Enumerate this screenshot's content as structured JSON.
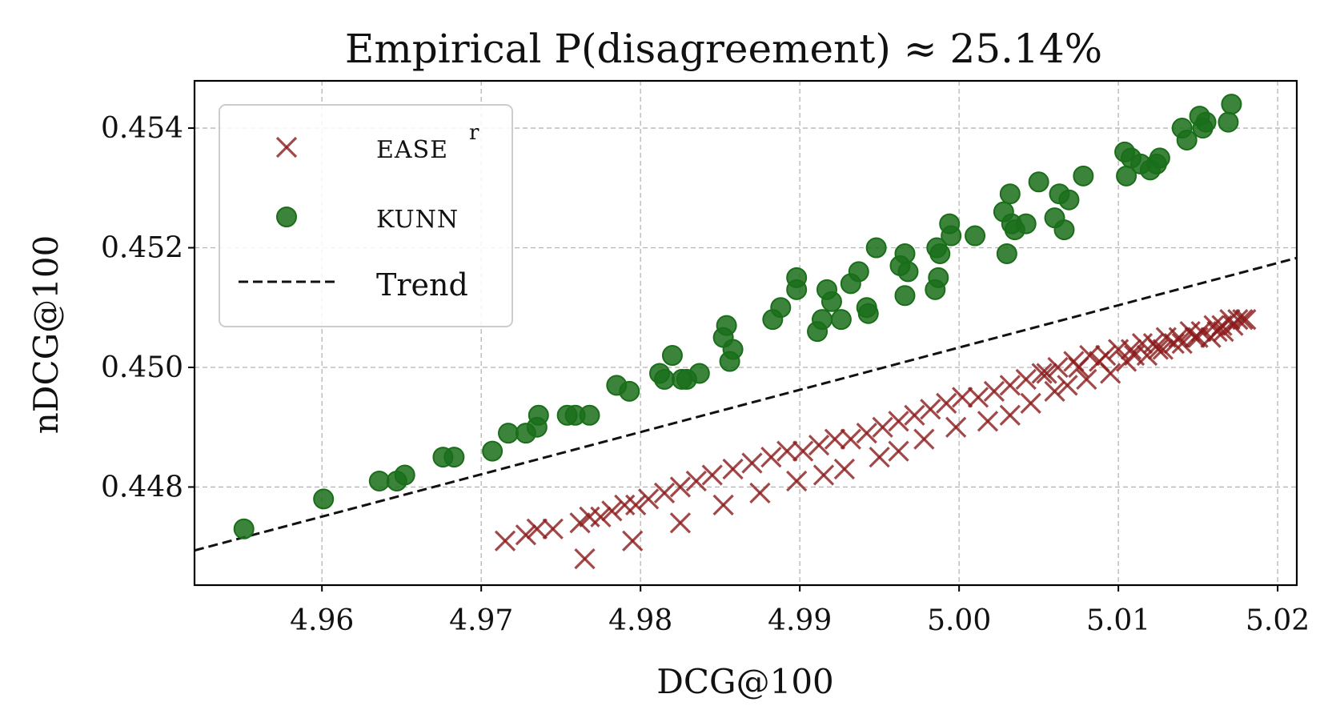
{
  "chart_data": {
    "type": "scatter",
    "title": "Empirical P(disagreement) ≈ 25.14%",
    "xlabel": "DCG@100",
    "ylabel": "nDCG@100",
    "xlim": [
      4.952,
      5.0212
    ],
    "ylim": [
      0.44636,
      0.45479
    ],
    "x_ticks": [
      4.96,
      4.97,
      4.98,
      4.99,
      5.0,
      5.01,
      5.02
    ],
    "x_tick_labels": [
      "4.96",
      "4.97",
      "4.98",
      "4.99",
      "5.00",
      "5.01",
      "5.02"
    ],
    "y_ticks": [
      0.448,
      0.45,
      0.452,
      0.454
    ],
    "y_tick_labels": [
      "0.448",
      "0.450",
      "0.452",
      "0.454"
    ],
    "grid": true,
    "legend_position": "top-left",
    "legend": [
      {
        "label": "EASE",
        "superscript": "r",
        "marker": "x",
        "color": "#8b1a1a"
      },
      {
        "label": "KUNN",
        "superscript": "",
        "marker": "circle",
        "color": "#1a6e1a"
      },
      {
        "label": "Trend",
        "superscript": "",
        "marker": "dashed-line",
        "color": "#111111"
      }
    ],
    "trend": {
      "x": [
        4.952,
        5.0212
      ],
      "y": [
        0.44694,
        0.45183
      ]
    },
    "series": [
      {
        "name": "EASE",
        "marker": "x",
        "color": "#8b1a1a",
        "points": [
          [
            4.9715,
            0.4471
          ],
          [
            4.9728,
            0.4472
          ],
          [
            4.9735,
            0.4473
          ],
          [
            4.9745,
            0.4473
          ],
          [
            4.9762,
            0.4474
          ],
          [
            4.9768,
            0.4475
          ],
          [
            4.9775,
            0.4475
          ],
          [
            4.9782,
            0.4476
          ],
          [
            4.979,
            0.4477
          ],
          [
            4.9797,
            0.4477
          ],
          [
            4.9805,
            0.4478
          ],
          [
            4.9815,
            0.4479
          ],
          [
            4.9825,
            0.448
          ],
          [
            4.9835,
            0.4481
          ],
          [
            4.9845,
            0.4482
          ],
          [
            4.9858,
            0.4483
          ],
          [
            4.987,
            0.4484
          ],
          [
            4.9882,
            0.4485
          ],
          [
            4.9892,
            0.4486
          ],
          [
            4.9902,
            0.4486
          ],
          [
            4.9912,
            0.4487
          ],
          [
            4.9922,
            0.4488
          ],
          [
            4.9932,
            0.4488
          ],
          [
            4.9942,
            0.4489
          ],
          [
            4.9952,
            0.449
          ],
          [
            4.9962,
            0.4491
          ],
          [
            4.9972,
            0.4492
          ],
          [
            4.9982,
            0.4493
          ],
          [
            4.9992,
            0.4494
          ],
          [
            5.0002,
            0.4495
          ],
          [
            5.0012,
            0.4495
          ],
          [
            5.0022,
            0.4496
          ],
          [
            5.0032,
            0.4497
          ],
          [
            5.0042,
            0.4498
          ],
          [
            5.0052,
            0.4499
          ],
          [
            5.0062,
            0.45
          ],
          [
            5.0072,
            0.4501
          ],
          [
            5.0082,
            0.4502
          ],
          [
            5.0092,
            0.4502
          ],
          [
            5.01,
            0.4503
          ],
          [
            5.0108,
            0.4503
          ],
          [
            5.0115,
            0.4504
          ],
          [
            5.0122,
            0.4504
          ],
          [
            5.013,
            0.4505
          ],
          [
            5.0138,
            0.4505
          ],
          [
            5.0145,
            0.4506
          ],
          [
            5.0152,
            0.4506
          ],
          [
            5.016,
            0.4507
          ],
          [
            5.0165,
            0.4507
          ],
          [
            5.017,
            0.4508
          ],
          [
            5.0175,
            0.4508
          ],
          [
            5.018,
            0.4508
          ],
          [
            4.9765,
            0.4468
          ],
          [
            4.9795,
            0.4471
          ],
          [
            4.9825,
            0.4474
          ],
          [
            4.9852,
            0.4477
          ],
          [
            4.9875,
            0.4479
          ],
          [
            4.9898,
            0.4481
          ],
          [
            4.9915,
            0.4482
          ],
          [
            4.9928,
            0.4483
          ],
          [
            4.995,
            0.4485
          ],
          [
            4.9962,
            0.4486
          ],
          [
            4.9978,
            0.4488
          ],
          [
            4.9998,
            0.449
          ],
          [
            5.0018,
            0.4491
          ],
          [
            5.0032,
            0.4492
          ],
          [
            5.0045,
            0.4494
          ],
          [
            5.006,
            0.4496
          ],
          [
            5.0068,
            0.4497
          ],
          [
            5.008,
            0.4498
          ],
          [
            5.0095,
            0.4499
          ],
          [
            5.0105,
            0.4501
          ],
          [
            5.0118,
            0.4502
          ],
          [
            5.0128,
            0.4503
          ],
          [
            5.014,
            0.4504
          ],
          [
            5.015,
            0.4505
          ],
          [
            5.0158,
            0.4505
          ],
          [
            5.0166,
            0.4506
          ],
          [
            5.0172,
            0.4507
          ],
          [
            5.0178,
            0.4508
          ],
          [
            5.0055,
            0.4499
          ],
          [
            5.0075,
            0.45
          ],
          [
            5.0088,
            0.4501
          ],
          [
            5.011,
            0.4502
          ],
          [
            5.0125,
            0.4503
          ],
          [
            5.0135,
            0.4504
          ],
          [
            5.0148,
            0.4505
          ],
          [
            5.0162,
            0.4506
          ]
        ]
      },
      {
        "name": "KUNN",
        "marker": "circle",
        "color": "#1a6e1a",
        "points": [
          [
            4.9551,
            0.4473
          ],
          [
            4.9601,
            0.4478
          ],
          [
            4.9636,
            0.4481
          ],
          [
            4.9647,
            0.4481
          ],
          [
            4.9652,
            0.4482
          ],
          [
            4.9676,
            0.4485
          ],
          [
            4.9683,
            0.4485
          ],
          [
            4.9707,
            0.4486
          ],
          [
            4.9717,
            0.4489
          ],
          [
            4.9728,
            0.4489
          ],
          [
            4.9735,
            0.449
          ],
          [
            4.9736,
            0.4492
          ],
          [
            4.9754,
            0.4492
          ],
          [
            4.9759,
            0.4492
          ],
          [
            4.9768,
            0.4492
          ],
          [
            4.9785,
            0.4497
          ],
          [
            4.9793,
            0.4496
          ],
          [
            4.9812,
            0.4499
          ],
          [
            4.9815,
            0.4498
          ],
          [
            4.982,
            0.4502
          ],
          [
            4.9826,
            0.4498
          ],
          [
            4.9829,
            0.4498
          ],
          [
            4.9837,
            0.4499
          ],
          [
            4.9852,
            0.4505
          ],
          [
            4.9854,
            0.4507
          ],
          [
            4.9856,
            0.4501
          ],
          [
            4.9858,
            0.4503
          ],
          [
            4.9883,
            0.4508
          ],
          [
            4.9888,
            0.451
          ],
          [
            4.9898,
            0.4515
          ],
          [
            4.9898,
            0.4513
          ],
          [
            4.9911,
            0.4506
          ],
          [
            4.9914,
            0.4508
          ],
          [
            4.9917,
            0.4513
          ],
          [
            4.992,
            0.4511
          ],
          [
            4.9926,
            0.4508
          ],
          [
            4.9932,
            0.4514
          ],
          [
            4.9937,
            0.4516
          ],
          [
            4.9942,
            0.451
          ],
          [
            4.9943,
            0.4509
          ],
          [
            4.9948,
            0.452
          ],
          [
            4.9963,
            0.4517
          ],
          [
            4.9966,
            0.4519
          ],
          [
            4.9966,
            0.4512
          ],
          [
            4.9968,
            0.4516
          ],
          [
            4.9985,
            0.4513
          ],
          [
            4.9986,
            0.452
          ],
          [
            4.9987,
            0.4515
          ],
          [
            4.9988,
            0.4519
          ],
          [
            4.9994,
            0.4524
          ],
          [
            4.9995,
            0.4522
          ],
          [
            5.001,
            0.4522
          ],
          [
            5.0028,
            0.4526
          ],
          [
            5.003,
            0.4519
          ],
          [
            5.0032,
            0.4529
          ],
          [
            5.0033,
            0.4524
          ],
          [
            5.0035,
            0.4523
          ],
          [
            5.0042,
            0.4524
          ],
          [
            5.005,
            0.4531
          ],
          [
            5.006,
            0.4525
          ],
          [
            5.0063,
            0.4529
          ],
          [
            5.0066,
            0.4523
          ],
          [
            5.0069,
            0.4528
          ],
          [
            5.0078,
            0.4532
          ],
          [
            5.0104,
            0.4536
          ],
          [
            5.0105,
            0.4532
          ],
          [
            5.0108,
            0.4535
          ],
          [
            5.0114,
            0.4534
          ],
          [
            5.012,
            0.4533
          ],
          [
            5.0124,
            0.4534
          ],
          [
            5.0126,
            0.4535
          ],
          [
            5.014,
            0.454
          ],
          [
            5.0143,
            0.4538
          ],
          [
            5.0151,
            0.4542
          ],
          [
            5.0153,
            0.454
          ],
          [
            5.0155,
            0.4541
          ],
          [
            5.0169,
            0.4541
          ],
          [
            5.0171,
            0.4544
          ]
        ]
      }
    ]
  }
}
